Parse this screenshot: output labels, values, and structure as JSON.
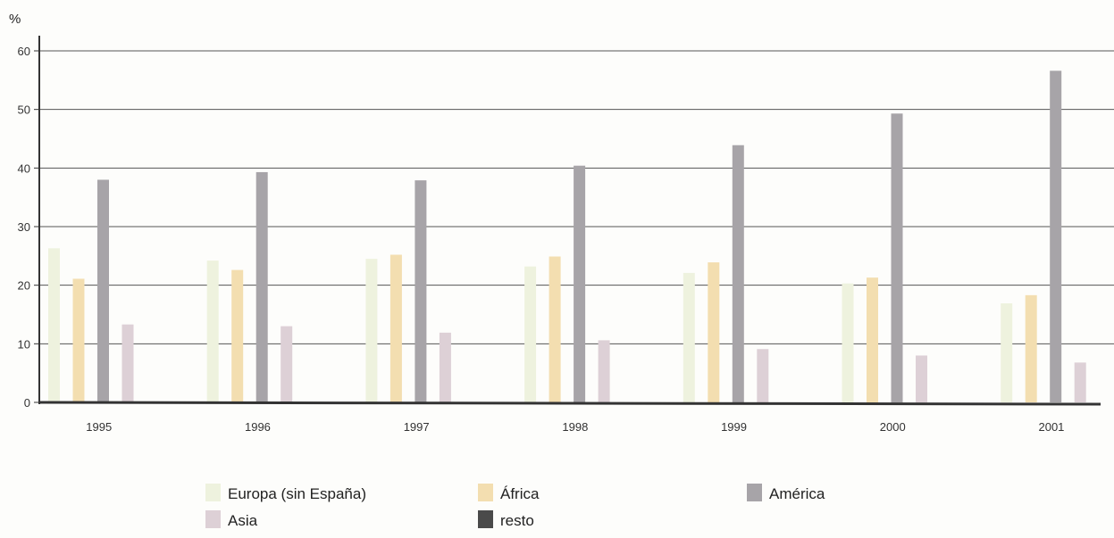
{
  "chart_data": {
    "type": "bar",
    "ylabel": "%",
    "xlabel": "",
    "title": "",
    "ylim": [
      0,
      60
    ],
    "yticks": [
      0,
      10,
      20,
      30,
      40,
      50,
      60
    ],
    "grid": true,
    "categories": [
      "1995",
      "1996",
      "1997",
      "1998",
      "1999",
      "2000",
      "2001"
    ],
    "series": [
      {
        "name": "Europa (sin España)",
        "color": "#eef2de",
        "values": [
          26.3,
          24.2,
          24.5,
          23.2,
          22.1,
          20.3,
          16.9
        ]
      },
      {
        "name": "África",
        "color": "#f3deb0",
        "values": [
          21.1,
          22.6,
          25.2,
          24.9,
          23.9,
          21.3,
          18.3
        ]
      },
      {
        "name": "América",
        "color": "#a7a4a8",
        "values": [
          38.0,
          39.3,
          37.9,
          40.4,
          43.9,
          49.3,
          56.6
        ]
      },
      {
        "name": "Asia",
        "color": "#ddd0d6",
        "values": [
          13.3,
          13.0,
          11.9,
          10.6,
          9.1,
          8.0,
          6.8
        ]
      },
      {
        "name": "resto",
        "color": "#4a4a4a",
        "values": [
          0,
          0,
          0,
          0,
          0,
          0,
          0
        ]
      }
    ],
    "legend_position": "bottom"
  }
}
